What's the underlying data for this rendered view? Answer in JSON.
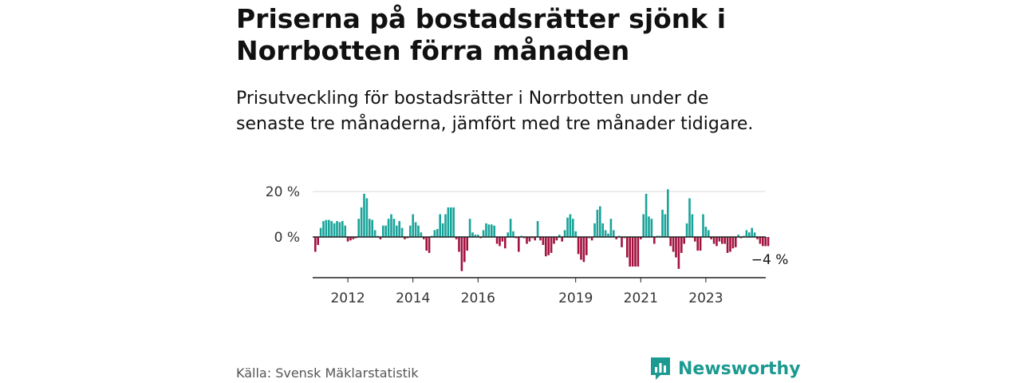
{
  "title": "Priserna på bostadsrätter sjönk i Norrbotten förra månaden",
  "subtitle": "Prisutveckling för bostadsrätter i Norrbotten under de senaste tre månaderna, jämfört med tre månader tidigare.",
  "source": "Källa: Svensk Mäklarstatistik",
  "brand": "Newsworthy",
  "colors": {
    "positive": "#1aa39a",
    "negative": "#a3123f",
    "brand": "#1c9a91"
  },
  "chart_data": {
    "type": "bar",
    "ylabel": "",
    "xlabel": "",
    "ylim": [
      -17,
      20
    ],
    "yticks": [
      {
        "value": 0,
        "label": "0 %"
      },
      {
        "value": 20,
        "label": "20 %"
      }
    ],
    "xticks": [
      {
        "index": 12,
        "label": "2012"
      },
      {
        "index": 36,
        "label": "2014"
      },
      {
        "index": 60,
        "label": "2016"
      },
      {
        "index": 96,
        "label": "2019"
      },
      {
        "index": 120,
        "label": "2021"
      },
      {
        "index": 144,
        "label": "2023"
      }
    ],
    "last_value_label": "−4 %",
    "values": [
      -6.5,
      -3.5,
      4,
      7,
      7.5,
      7.5,
      7,
      6,
      7,
      6.5,
      7,
      5,
      -2,
      -1.5,
      -1,
      -0.5,
      8,
      13,
      19,
      17,
      8,
      7.5,
      3,
      0.5,
      -1,
      5,
      5,
      8,
      10,
      8,
      5,
      7,
      4,
      -1,
      -0.5,
      5,
      10,
      6.5,
      5,
      2,
      -1,
      -6,
      -7,
      0.5,
      3,
      3.5,
      10,
      6,
      10,
      13,
      13,
      13,
      -1,
      -6.5,
      -15,
      -11,
      -6,
      8,
      2,
      1,
      1,
      -0.5,
      3,
      6,
      5.5,
      5.5,
      5,
      -3,
      -4,
      -2,
      -5,
      2,
      8,
      2.5,
      -0.5,
      -6.5,
      0.5,
      -0.5,
      -3,
      -2,
      -0.5,
      -1.5,
      7,
      -1.5,
      -3.5,
      -8.5,
      -8,
      -7,
      -3,
      -1.5,
      1,
      -2,
      3,
      8.5,
      10,
      8,
      2.5,
      -7.5,
      -10,
      -11,
      -8,
      -0.5,
      -1.5,
      6,
      12,
      13.5,
      6,
      3,
      1.5,
      8,
      3,
      -1,
      0.5,
      -4.5,
      -0.5,
      -9,
      -13,
      -13,
      -13,
      -13,
      -1,
      10,
      19,
      9,
      8,
      -3,
      0.5,
      0.5,
      12,
      10,
      21,
      -4,
      -6.5,
      -9,
      -14,
      -7,
      -3,
      6,
      17,
      10,
      -2,
      -6,
      -6,
      10,
      4.5,
      3,
      -1,
      -3,
      -4,
      -2,
      -3,
      -3,
      -7,
      -6.5,
      -5,
      -4.5,
      1,
      -0.5,
      0.5,
      3,
      2,
      4,
      2,
      -1,
      -3,
      -4,
      -4,
      -4
    ]
  }
}
